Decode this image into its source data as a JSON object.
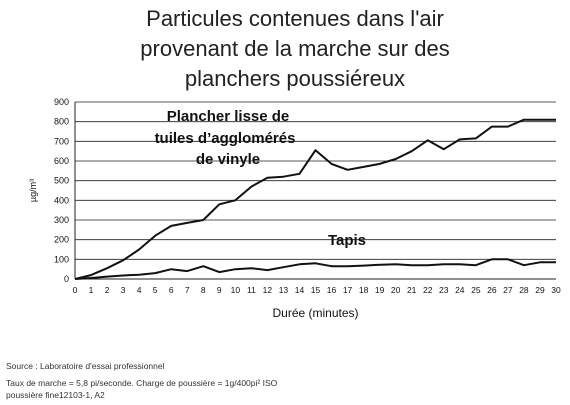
{
  "chart_data": {
    "type": "line",
    "title": [
      "Particules contenues dans l'air",
      "provenant de la marche sur des",
      "planchers poussiéreux"
    ],
    "xlabel": "Durée (minutes)",
    "ylabel": "µg/m³",
    "xlim": [
      0,
      30
    ],
    "ylim": [
      0,
      900
    ],
    "x_ticks": [
      0,
      1,
      2,
      3,
      4,
      5,
      6,
      7,
      8,
      9,
      10,
      11,
      12,
      13,
      14,
      15,
      16,
      17,
      18,
      19,
      20,
      21,
      22,
      23,
      24,
      25,
      26,
      27,
      28,
      29,
      30
    ],
    "y_ticks": [
      0,
      100,
      200,
      300,
      400,
      500,
      600,
      700,
      800,
      900
    ],
    "grid": "horizontal",
    "x": [
      0,
      1,
      2,
      3,
      4,
      5,
      6,
      7,
      8,
      9,
      10,
      11,
      12,
      13,
      14,
      15,
      16,
      17,
      18,
      19,
      20,
      21,
      22,
      23,
      24,
      25,
      26,
      27,
      28,
      29,
      30
    ],
    "series": [
      {
        "name": "Plancher lisse de tuiles d'agglomérés de vinyle",
        "label_lines": [
          "Plancher lisse de",
          "tuiles d’agglomérés",
          "de vinyle"
        ],
        "color": "#111111",
        "values": [
          0,
          20,
          55,
          95,
          150,
          220,
          270,
          285,
          300,
          380,
          400,
          470,
          515,
          520,
          535,
          655,
          585,
          555,
          570,
          585,
          610,
          650,
          705,
          660,
          710,
          715,
          775,
          775,
          810,
          810,
          810
        ]
      },
      {
        "name": "Tapis",
        "label_lines": [
          "Tapis"
        ],
        "color": "#111111",
        "values": [
          0,
          5,
          12,
          18,
          22,
          30,
          50,
          40,
          65,
          35,
          50,
          55,
          45,
          60,
          75,
          80,
          65,
          65,
          68,
          72,
          75,
          70,
          70,
          75,
          75,
          70,
          100,
          100,
          70,
          85,
          85
        ]
      }
    ]
  },
  "source": {
    "line1": "Source : Laboratoire d'essai professionnel",
    "line2": "Taux de marche = 5,8 pi/seconde. Charge de poussière = 1g/400pi² ISO",
    "line3": "poussière fine12103-1, A2"
  }
}
